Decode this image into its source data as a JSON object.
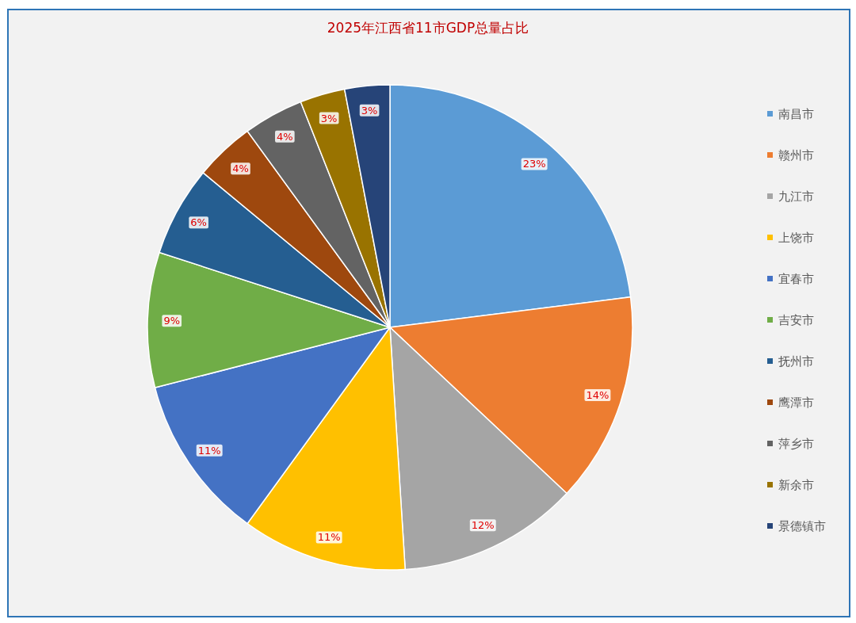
{
  "chart_data": {
    "type": "pie",
    "title": "2025年江西省11市GDP总量占比",
    "categories": [
      "南昌市",
      "赣州市",
      "九江市",
      "上饶市",
      "宜春市",
      "吉安市",
      "抚州市",
      "鹰潭市",
      "萍乡市",
      "新余市",
      "景德镇市"
    ],
    "values": [
      23,
      14,
      12,
      11,
      11,
      9,
      6,
      4,
      4,
      3,
      3
    ],
    "value_labels": [
      "23%",
      "14%",
      "12%",
      "11%",
      "11%",
      "9%",
      "6%",
      "4%",
      "4%",
      "3%",
      "3%"
    ],
    "colors": [
      "#5b9bd5",
      "#ed7d31",
      "#a5a5a5",
      "#ffc000",
      "#4472c4",
      "#70ad47",
      "#255e91",
      "#9e480e",
      "#636363",
      "#997300",
      "#264478"
    ],
    "legend": "right"
  }
}
